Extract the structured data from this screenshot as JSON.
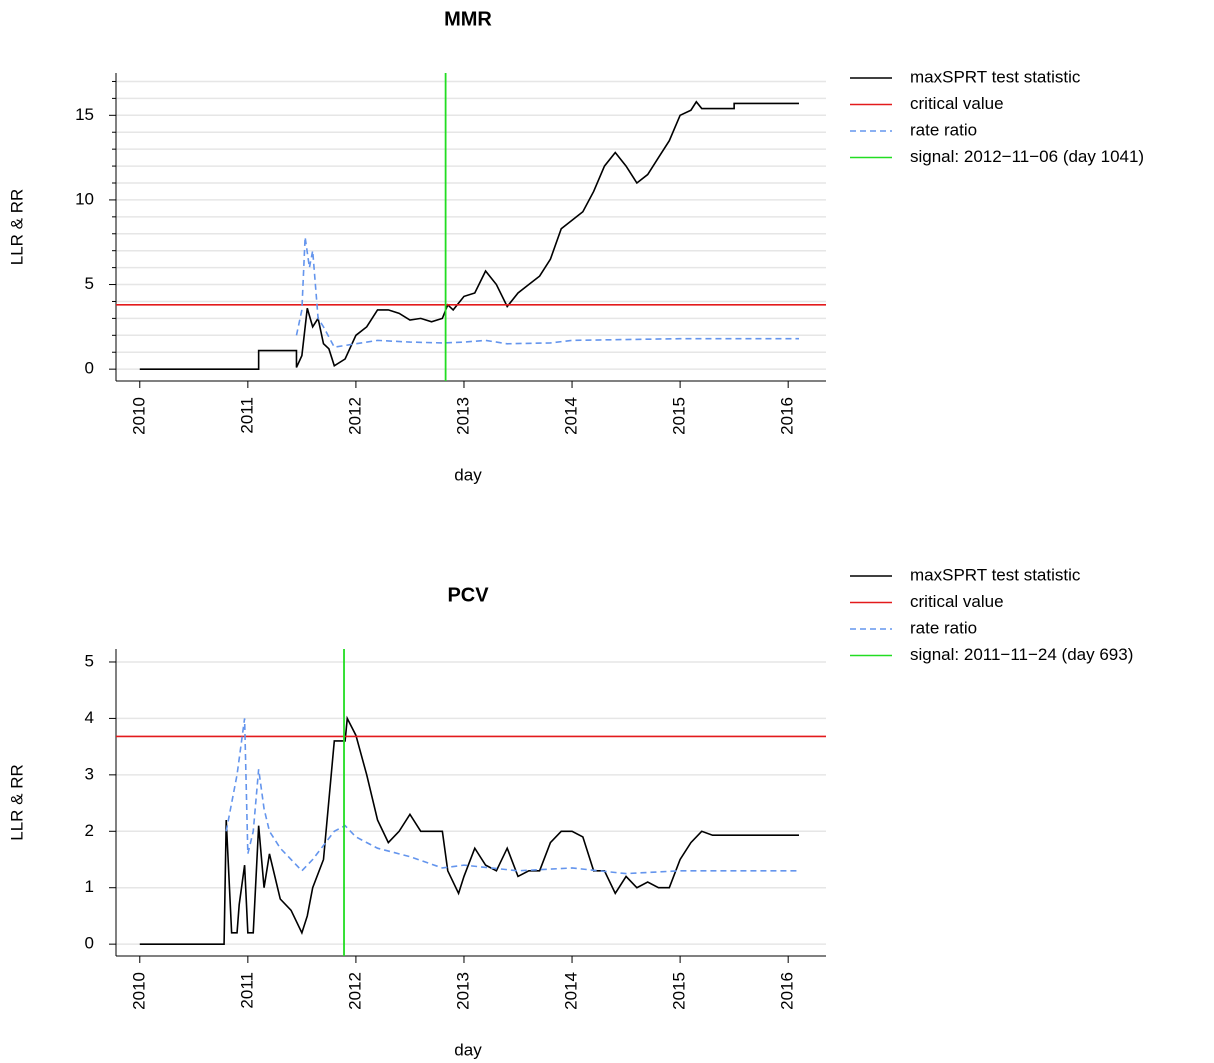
{
  "chart_data": [
    {
      "type": "line",
      "title": "MMR",
      "xlabel": "day",
      "ylabel": "LLR & RR",
      "xlim": [
        2009.78,
        2016.35
      ],
      "ylim": [
        -0.7,
        17.5
      ],
      "xticks": [
        2010,
        2011,
        2012,
        2013,
        2014,
        2015,
        2016
      ],
      "yticks": [
        0,
        5,
        10,
        15
      ],
      "minor_yticks": [
        1,
        2,
        3,
        4,
        6,
        7,
        8,
        9,
        11,
        12,
        13,
        14,
        16,
        17
      ],
      "grid": true,
      "series": [
        {
          "name": "maxSPRT test statistic",
          "color": "#000000",
          "kind": "line",
          "dash": false,
          "x": [
            2010.0,
            2011.1,
            2011.1,
            2011.45,
            2011.45,
            2011.5,
            2011.55,
            2011.6,
            2011.65,
            2011.7,
            2011.75,
            2011.8,
            2011.9,
            2012.0,
            2012.1,
            2012.2,
            2012.3,
            2012.4,
            2012.5,
            2012.6,
            2012.7,
            2012.8,
            2012.85,
            2012.9,
            2013.0,
            2013.1,
            2013.2,
            2013.3,
            2013.4,
            2013.5,
            2013.6,
            2013.7,
            2013.8,
            2013.9,
            2014.0,
            2014.1,
            2014.2,
            2014.3,
            2014.4,
            2014.5,
            2014.6,
            2014.7,
            2014.8,
            2014.9,
            2015.0,
            2015.1,
            2015.15,
            2015.2,
            2015.5,
            2015.5,
            2016.1
          ],
          "values": [
            0,
            0,
            1.1,
            1.1,
            0.1,
            0.8,
            3.6,
            2.5,
            3.0,
            1.5,
            1.2,
            0.2,
            0.6,
            2.0,
            2.5,
            3.5,
            3.5,
            3.3,
            2.9,
            3.0,
            2.8,
            3.0,
            3.8,
            3.5,
            4.3,
            4.5,
            5.8,
            5.0,
            3.7,
            4.5,
            5.0,
            5.5,
            6.5,
            8.3,
            8.8,
            9.3,
            10.5,
            12.0,
            12.8,
            12.0,
            11.0,
            11.5,
            12.5,
            13.5,
            15.0,
            15.3,
            15.8,
            15.4,
            15.4,
            15.7,
            15.7
          ]
        },
        {
          "name": "critical value",
          "color": "#e31a1c",
          "kind": "hline",
          "dash": false,
          "value": 3.8
        },
        {
          "name": "rate ratio",
          "color": "#6495ed",
          "kind": "line",
          "dash": true,
          "x": [
            2011.45,
            2011.5,
            2011.53,
            2011.57,
            2011.6,
            2011.65,
            2011.7,
            2011.8,
            2012.0,
            2012.2,
            2012.5,
            2012.8,
            2013.0,
            2013.2,
            2013.4,
            2013.8,
            2014.0,
            2014.5,
            2015.0,
            2016.1
          ],
          "values": [
            2.0,
            3.5,
            7.8,
            6.0,
            7.0,
            3.0,
            2.5,
            1.3,
            1.5,
            1.7,
            1.6,
            1.55,
            1.6,
            1.7,
            1.5,
            1.55,
            1.7,
            1.75,
            1.8,
            1.8
          ]
        },
        {
          "name": "signal: 2012−11−06 (day 1041)",
          "color": "#22dd22",
          "kind": "vline",
          "dash": false,
          "value": 2012.83
        }
      ]
    },
    {
      "type": "line",
      "title": "PCV",
      "xlabel": "day",
      "ylabel": "LLR & RR",
      "xlim": [
        2009.78,
        2016.35
      ],
      "ylim": [
        -0.21,
        5.23
      ],
      "xticks": [
        2010,
        2011,
        2012,
        2013,
        2014,
        2015,
        2016
      ],
      "yticks": [
        0,
        1,
        2,
        3,
        4,
        5
      ],
      "grid": true,
      "series": [
        {
          "name": "maxSPRT test statistic",
          "color": "#000000",
          "kind": "line",
          "dash": false,
          "x": [
            2010.0,
            2010.78,
            2010.8,
            2010.85,
            2010.9,
            2010.92,
            2010.97,
            2011.0,
            2011.05,
            2011.1,
            2011.15,
            2011.2,
            2011.3,
            2011.4,
            2011.5,
            2011.55,
            2011.6,
            2011.7,
            2011.8,
            2011.9,
            2011.92,
            2012.0,
            2012.1,
            2012.2,
            2012.3,
            2012.4,
            2012.5,
            2012.6,
            2012.8,
            2012.85,
            2012.95,
            2013.0,
            2013.1,
            2013.2,
            2013.3,
            2013.4,
            2013.5,
            2013.6,
            2013.7,
            2013.8,
            2013.9,
            2014.0,
            2014.1,
            2014.2,
            2014.3,
            2014.4,
            2014.5,
            2014.6,
            2014.7,
            2014.8,
            2014.9,
            2015.0,
            2015.1,
            2015.2,
            2015.3,
            2016.1
          ],
          "values": [
            0,
            0,
            2.2,
            0.2,
            0.2,
            0.7,
            1.4,
            0.2,
            0.2,
            2.1,
            1.0,
            1.6,
            0.8,
            0.6,
            0.2,
            0.5,
            1.0,
            1.5,
            3.6,
            3.6,
            4.0,
            3.7,
            3.0,
            2.2,
            1.8,
            2.0,
            2.3,
            2.0,
            2.0,
            1.3,
            0.9,
            1.2,
            1.7,
            1.4,
            1.3,
            1.7,
            1.2,
            1.3,
            1.3,
            1.8,
            2.0,
            2.0,
            1.9,
            1.3,
            1.3,
            0.9,
            1.2,
            1.0,
            1.1,
            1.0,
            1.0,
            1.5,
            1.8,
            2.0,
            1.93,
            1.93
          ]
        },
        {
          "name": "critical value",
          "color": "#e31a1c",
          "kind": "hline",
          "dash": false,
          "value": 3.68
        },
        {
          "name": "rate ratio",
          "color": "#6495ed",
          "kind": "line",
          "dash": true,
          "x": [
            2010.8,
            2010.9,
            2010.97,
            2011.0,
            2011.05,
            2011.1,
            2011.15,
            2011.2,
            2011.3,
            2011.5,
            2011.6,
            2011.8,
            2011.9,
            2012.0,
            2012.2,
            2012.5,
            2012.8,
            2013.0,
            2013.5,
            2014.0,
            2014.5,
            2015.0,
            2016.1
          ],
          "values": [
            2.0,
            3.0,
            4.0,
            1.6,
            2.0,
            3.1,
            2.4,
            2.0,
            1.7,
            1.3,
            1.5,
            2.0,
            2.1,
            1.9,
            1.7,
            1.55,
            1.35,
            1.4,
            1.3,
            1.35,
            1.25,
            1.3,
            1.3
          ]
        },
        {
          "name": "signal: 2011−11−24 (day 693)",
          "color": "#22dd22",
          "kind": "vline",
          "dash": false,
          "value": 2011.89
        }
      ]
    }
  ]
}
